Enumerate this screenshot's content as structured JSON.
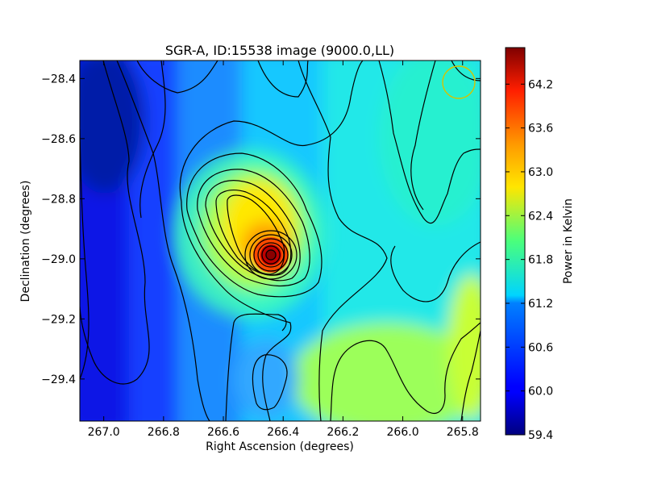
{
  "chart_data": {
    "type": "heatmap",
    "title": "SGR-A, ID:15538 image (9000.0,LL)",
    "xlabel": "Right Ascension (degrees)",
    "ylabel": "Declination (degrees)",
    "colorbar_label": "Power in Kelvin",
    "colormap": "jet",
    "xlim": [
      267.08,
      265.74
    ],
    "ylim": [
      -29.54,
      -28.34
    ],
    "x_ticks": [
      267.0,
      266.8,
      266.6,
      266.4,
      266.2,
      266.0,
      265.8
    ],
    "x_tick_labels": [
      "267.0",
      "266.8",
      "266.6",
      "266.4",
      "266.2",
      "266.0",
      "265.8"
    ],
    "y_ticks": [
      -28.4,
      -28.6,
      -28.8,
      -29.0,
      -29.2,
      -29.4
    ],
    "y_tick_labels": [
      "−28.4",
      "−28.6",
      "−28.8",
      "−29.0",
      "−29.2",
      "−29.4"
    ],
    "clim": [
      59.4,
      64.7
    ],
    "colorbar_ticks": [
      59.4,
      60.0,
      60.6,
      61.2,
      61.8,
      62.4,
      63.0,
      63.6,
      64.2
    ],
    "colorbar_tick_labels": [
      "59.4",
      "60.0",
      "60.6",
      "61.2",
      "61.8",
      "62.4",
      "63.0",
      "63.6",
      "64.2"
    ],
    "peak": {
      "ra": 266.45,
      "dec": -28.98,
      "value": 64.6
    },
    "contours": "black lines",
    "beam_marker": {
      "ra": 265.81,
      "dec": -28.41,
      "color": "#d4c400"
    }
  }
}
